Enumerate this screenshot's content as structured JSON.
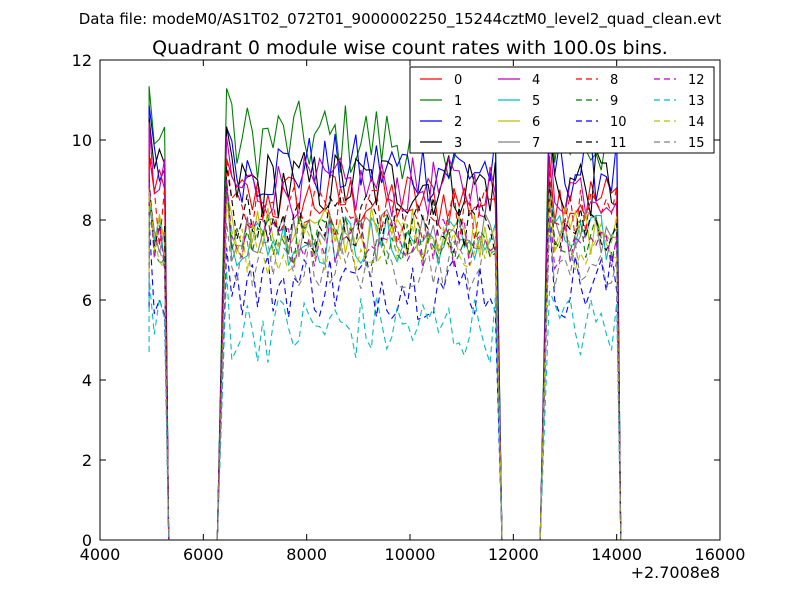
{
  "chart_data": {
    "type": "line",
    "suptitle": "Data file: modeM0/AS1T02_072T01_9000002250_15244cztM0_level2_quad_clean.evt",
    "title": "Quadrant 0 module wise count rates with 100.0s bins.",
    "xlabel": "",
    "ylabel": "",
    "x_offset_label": "+2.7008e8",
    "xlim": [
      4000,
      16000
    ],
    "ylim": [
      0,
      12
    ],
    "x_ticks": [
      4000,
      6000,
      8000,
      10000,
      12000,
      14000,
      16000
    ],
    "y_ticks": [
      0,
      2,
      4,
      6,
      8,
      10,
      12
    ],
    "legend_position": "top-right",
    "legend_columns": 4,
    "segments": [
      [
        4950,
        5250
      ],
      [
        6450,
        11700
      ],
      [
        12700,
        14050
      ]
    ],
    "series": [
      {
        "name": "0",
        "color": "#ff0000",
        "dash": "solid",
        "level": 8.5,
        "amp": 0.35
      },
      {
        "name": "1",
        "color": "#008000",
        "dash": "solid",
        "level": 10.0,
        "amp": 0.45
      },
      {
        "name": "2",
        "color": "#0000ff",
        "dash": "solid",
        "level": 9.3,
        "amp": 0.4
      },
      {
        "name": "3",
        "color": "#000000",
        "dash": "solid",
        "level": 8.9,
        "amp": 0.4
      },
      {
        "name": "4",
        "color": "#bf00bf",
        "dash": "solid",
        "level": 8.8,
        "amp": 0.35
      },
      {
        "name": "5",
        "color": "#00bfbf",
        "dash": "solid",
        "level": 7.5,
        "amp": 0.3
      },
      {
        "name": "6",
        "color": "#bfbf00",
        "dash": "solid",
        "level": 7.7,
        "amp": 0.3
      },
      {
        "name": "7",
        "color": "#808080",
        "dash": "solid",
        "level": 7.6,
        "amp": 0.3
      },
      {
        "name": "8",
        "color": "#ff0000",
        "dash": "dashed",
        "level": 8.1,
        "amp": 0.35
      },
      {
        "name": "9",
        "color": "#008000",
        "dash": "dashed",
        "level": 7.5,
        "amp": 0.3
      },
      {
        "name": "10",
        "color": "#0000ff",
        "dash": "dashed",
        "level": 6.4,
        "amp": 0.4
      },
      {
        "name": "11",
        "color": "#000000",
        "dash": "dashed",
        "level": 7.9,
        "amp": 0.35
      },
      {
        "name": "12",
        "color": "#bf00bf",
        "dash": "dashed",
        "level": 7.4,
        "amp": 0.3
      },
      {
        "name": "13",
        "color": "#00bfbf",
        "dash": "dashed",
        "level": 5.3,
        "amp": 0.4
      },
      {
        "name": "14",
        "color": "#bfbf00",
        "dash": "dashed",
        "level": 7.3,
        "amp": 0.3
      },
      {
        "name": "15",
        "color": "#808080",
        "dash": "dashed",
        "level": 6.9,
        "amp": 0.3
      }
    ]
  }
}
